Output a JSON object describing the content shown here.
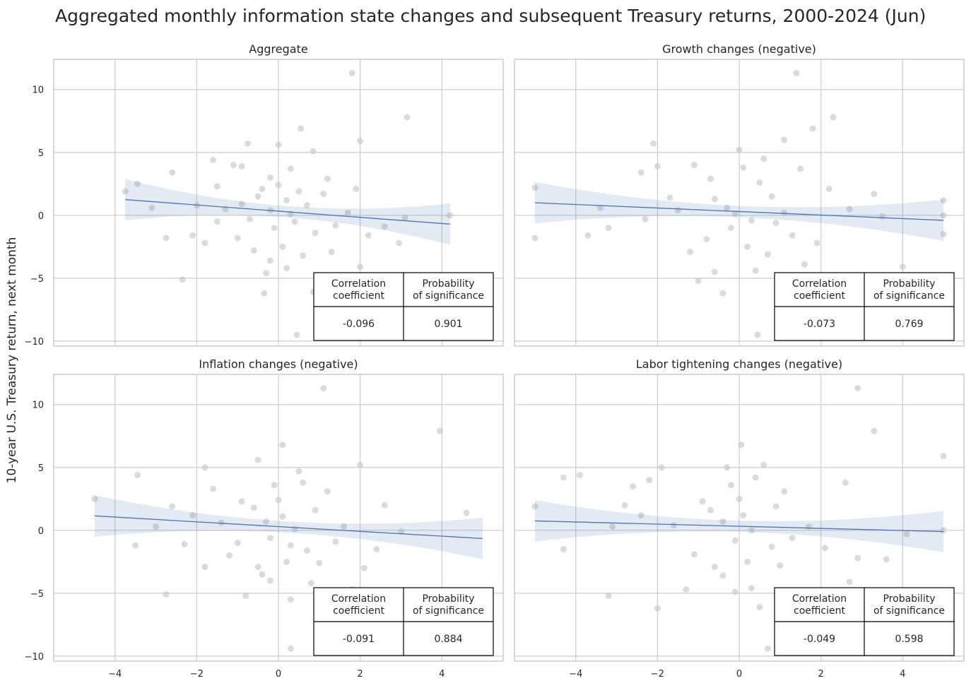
{
  "title": "Aggregated monthly information state changes and subsequent Treasury returns, 2000-2024 (Jun)",
  "ylabel": "10-year U.S. Treasury return, next month",
  "colors": {
    "points": "#c8c8c8",
    "line": "#4c72b0",
    "band": "#4c72b0",
    "grid": "#cccccc"
  },
  "table_headers": [
    "Correlation\ncoefficient",
    "Probability\nof significance"
  ],
  "chart_data": [
    {
      "type": "scatter",
      "title": "Aggregate",
      "xlim": [
        -5.5,
        5.5
      ],
      "ylim": [
        -10.4,
        12.4
      ],
      "xticks": [
        -4,
        -2,
        0,
        2,
        4
      ],
      "yticks": [
        -10,
        -5,
        0,
        5,
        10
      ],
      "grid": true,
      "regression": {
        "x": [
          -3.75,
          4.2
        ],
        "y": [
          1.25,
          -0.7
        ]
      },
      "correlation": "-0.096",
      "probability": "0.901",
      "points": [
        [
          1.8,
          11.3
        ],
        [
          3.15,
          7.8
        ],
        [
          2.0,
          5.9
        ],
        [
          0.55,
          6.9
        ],
        [
          -0.75,
          5.7
        ],
        [
          0,
          5.6
        ],
        [
          -3.75,
          1.9
        ],
        [
          -3.45,
          2.5
        ],
        [
          -2.6,
          3.4
        ],
        [
          -2.35,
          -5.1
        ],
        [
          -2.75,
          -1.8
        ],
        [
          -1.6,
          4.4
        ],
        [
          -1.5,
          2.3
        ],
        [
          -0.35,
          -6.2
        ],
        [
          0.85,
          -6.1
        ],
        [
          0.45,
          -9.5
        ],
        [
          2.0,
          -4.1
        ],
        [
          1.6,
          -5.4
        ],
        [
          4.2,
          0
        ],
        [
          3.1,
          -0.2
        ],
        [
          2.95,
          -2.2
        ],
        [
          2.2,
          -1.6
        ],
        [
          1.9,
          2.1
        ],
        [
          -1.1,
          4.0
        ],
        [
          -0.9,
          3.9
        ],
        [
          -0.2,
          3.0
        ],
        [
          0.3,
          3.7
        ],
        [
          0.85,
          5.1
        ],
        [
          -1.8,
          -2.2
        ],
        [
          -2.1,
          -1.6
        ],
        [
          -1.0,
          -1.8
        ],
        [
          -0.6,
          -2.8
        ],
        [
          0.1,
          -2.5
        ],
        [
          0.6,
          -3.2
        ],
        [
          1.3,
          -2.9
        ],
        [
          -0.3,
          -4.6
        ],
        [
          0.2,
          -4.2
        ],
        [
          -0.5,
          1.5
        ],
        [
          0.2,
          1.2
        ],
        [
          -0.2,
          0.4
        ],
        [
          0.4,
          -0.5
        ],
        [
          -0.7,
          -0.3
        ],
        [
          0.7,
          0.8
        ],
        [
          1.1,
          1.7
        ],
        [
          1.4,
          -0.8
        ],
        [
          -1.3,
          0.5
        ],
        [
          -2.0,
          0.8
        ],
        [
          -3.1,
          0.6
        ],
        [
          2.6,
          -0.9
        ],
        [
          0.0,
          2.4
        ],
        [
          -0.1,
          -1.0
        ],
        [
          0.3,
          0.1
        ],
        [
          -0.4,
          2.1
        ],
        [
          0.9,
          -1.4
        ],
        [
          1.7,
          0.2
        ],
        [
          -1.5,
          -0.5
        ],
        [
          -0.2,
          -3.6
        ],
        [
          0.5,
          1.9
        ],
        [
          -0.9,
          0.9
        ],
        [
          1.2,
          2.9
        ]
      ]
    },
    {
      "type": "scatter",
      "title": "Growth changes (negative)",
      "xlim": [
        -5.5,
        5.5
      ],
      "ylim": [
        -10.4,
        12.4
      ],
      "xticks": [
        -4,
        -2,
        0,
        2,
        4
      ],
      "yticks": [
        -10,
        -5,
        0,
        5,
        10
      ],
      "grid": true,
      "regression": {
        "x": [
          -5,
          5
        ],
        "y": [
          1.0,
          -0.4
        ]
      },
      "correlation": "-0.073",
      "probability": "0.769",
      "points": [
        [
          1.4,
          11.3
        ],
        [
          2.3,
          7.8
        ],
        [
          1.8,
          6.9
        ],
        [
          1.1,
          6.0
        ],
        [
          -2.1,
          5.7
        ],
        [
          0,
          5.2
        ],
        [
          -5,
          2.2
        ],
        [
          -5,
          -1.8
        ],
        [
          -3.2,
          -1.0
        ],
        [
          -3.7,
          -1.6
        ],
        [
          -2.0,
          3.9
        ],
        [
          -2.4,
          3.4
        ],
        [
          5,
          1.2
        ],
        [
          5,
          -1.5
        ],
        [
          5,
          0
        ],
        [
          3.3,
          1.7
        ],
        [
          3.5,
          -0.1
        ],
        [
          4.0,
          -4.1
        ],
        [
          2.2,
          2.1
        ],
        [
          1.9,
          -2.2
        ],
        [
          1.6,
          -3.9
        ],
        [
          0.45,
          -9.5
        ],
        [
          -0.4,
          -6.2
        ],
        [
          -0.6,
          -4.5
        ],
        [
          0.4,
          -4.4
        ],
        [
          -1.0,
          -5.2
        ],
        [
          -1.2,
          -2.9
        ],
        [
          -0.8,
          -1.9
        ],
        [
          0.2,
          -2.5
        ],
        [
          0.7,
          -3.1
        ],
        [
          1.3,
          -1.6
        ],
        [
          -0.3,
          0.6
        ],
        [
          0.3,
          -0.4
        ],
        [
          -0.6,
          1.3
        ],
        [
          0.8,
          1.5
        ],
        [
          -1.5,
          0.4
        ],
        [
          -2.3,
          -0.3
        ],
        [
          1.1,
          0.2
        ],
        [
          -0.2,
          -1.0
        ],
        [
          0.5,
          2.6
        ],
        [
          -0.7,
          2.9
        ],
        [
          -1.1,
          4.0
        ],
        [
          0.1,
          3.8
        ],
        [
          1.5,
          3.7
        ],
        [
          -1.7,
          1.4
        ],
        [
          -3.4,
          0.6
        ],
        [
          2.7,
          0.5
        ],
        [
          0.9,
          -0.6
        ],
        [
          -0.1,
          0.1
        ],
        [
          0.6,
          4.5
        ]
      ]
    },
    {
      "type": "scatter",
      "title": "Inflation changes (negative)",
      "xlim": [
        -5.5,
        5.5
      ],
      "ylim": [
        -10.4,
        12.4
      ],
      "xticks": [
        -4,
        -2,
        0,
        2,
        4
      ],
      "yticks": [
        -10,
        -5,
        0,
        5,
        10
      ],
      "grid": true,
      "regression": {
        "x": [
          -4.5,
          5
        ],
        "y": [
          1.15,
          -0.65
        ]
      },
      "correlation": "-0.091",
      "probability": "0.884",
      "points": [
        [
          1.1,
          11.3
        ],
        [
          3.95,
          7.9
        ],
        [
          0.1,
          6.8
        ],
        [
          2.0,
          5.2
        ],
        [
          -0.5,
          5.6
        ],
        [
          -4.5,
          2.5
        ],
        [
          -3.45,
          4.4
        ],
        [
          -3.5,
          -1.2
        ],
        [
          -3.0,
          0.3
        ],
        [
          -2.75,
          -5.1
        ],
        [
          -2.3,
          -1.1
        ],
        [
          -1.8,
          -2.9
        ],
        [
          -1.8,
          5.0
        ],
        [
          -1.6,
          3.3
        ],
        [
          4.6,
          1.4
        ],
        [
          3.0,
          -0.1
        ],
        [
          2.6,
          2.0
        ],
        [
          2.1,
          -3.0
        ],
        [
          1.8,
          -4.7
        ],
        [
          0.3,
          -9.4
        ],
        [
          0.3,
          -5.5
        ],
        [
          -0.8,
          -5.2
        ],
        [
          -0.2,
          -4.0
        ],
        [
          0.8,
          -4.2
        ],
        [
          -1.0,
          -1.0
        ],
        [
          -0.5,
          -2.9
        ],
        [
          0.2,
          -2.5
        ],
        [
          0.7,
          -1.6
        ],
        [
          1.4,
          -0.9
        ],
        [
          -0.3,
          0.7
        ],
        [
          0.4,
          0.1
        ],
        [
          -0.6,
          1.8
        ],
        [
          0.9,
          1.6
        ],
        [
          -1.4,
          0.6
        ],
        [
          -2.1,
          1.2
        ],
        [
          1.2,
          3.1
        ],
        [
          -0.1,
          3.6
        ],
        [
          0.6,
          3.8
        ],
        [
          -0.9,
          2.3
        ],
        [
          1.6,
          0.3
        ],
        [
          -0.2,
          -0.6
        ],
        [
          0.1,
          1.1
        ],
        [
          -1.2,
          -2.0
        ],
        [
          2.4,
          -1.5
        ],
        [
          0.5,
          4.7
        ],
        [
          -0.4,
          -3.5
        ],
        [
          1.0,
          -2.6
        ],
        [
          -2.6,
          1.9
        ],
        [
          0.0,
          2.4
        ],
        [
          0.3,
          -1.2
        ]
      ]
    },
    {
      "type": "scatter",
      "title": "Labor tightening changes (negative)",
      "xlim": [
        -5.5,
        5.5
      ],
      "ylim": [
        -10.4,
        12.4
      ],
      "xticks": [
        -4,
        -2,
        0,
        2,
        4
      ],
      "yticks": [
        -10,
        -5,
        0,
        5,
        10
      ],
      "grid": true,
      "regression": {
        "x": [
          -5,
          5
        ],
        "y": [
          0.75,
          -0.1
        ]
      },
      "correlation": "-0.049",
      "probability": "0.598",
      "points": [
        [
          2.9,
          11.3
        ],
        [
          3.3,
          7.9
        ],
        [
          0.05,
          6.8
        ],
        [
          5,
          5.9
        ],
        [
          -0.3,
          5.0
        ],
        [
          -5,
          1.9
        ],
        [
          -4.3,
          4.2
        ],
        [
          -3.9,
          4.4
        ],
        [
          -4.3,
          -1.5
        ],
        [
          -3.2,
          -5.2
        ],
        [
          -2.0,
          -6.2
        ],
        [
          -2.2,
          4.0
        ],
        [
          -1.9,
          5.0
        ],
        [
          -2.6,
          3.5
        ],
        [
          5,
          0
        ],
        [
          4.1,
          -0.3
        ],
        [
          3.6,
          -2.3
        ],
        [
          2.6,
          3.8
        ],
        [
          2.7,
          -4.1
        ],
        [
          2.9,
          -2.2
        ],
        [
          0.7,
          -9.4
        ],
        [
          0.5,
          -6.1
        ],
        [
          -0.1,
          -4.9
        ],
        [
          0.3,
          -4.6
        ],
        [
          -0.6,
          -2.9
        ],
        [
          -1.3,
          -4.7
        ],
        [
          -1.1,
          -1.9
        ],
        [
          0.2,
          -2.5
        ],
        [
          0.8,
          -1.3
        ],
        [
          1.3,
          -0.6
        ],
        [
          -0.4,
          0.7
        ],
        [
          0.3,
          0.0
        ],
        [
          -0.7,
          1.6
        ],
        [
          0.9,
          1.9
        ],
        [
          -1.6,
          0.4
        ],
        [
          -2.4,
          1.2
        ],
        [
          1.1,
          3.1
        ],
        [
          -0.2,
          3.6
        ],
        [
          0.4,
          4.2
        ],
        [
          -0.9,
          2.3
        ],
        [
          1.7,
          0.3
        ],
        [
          -0.1,
          -0.8
        ],
        [
          0.1,
          1.2
        ],
        [
          -3.1,
          0.3
        ],
        [
          2.1,
          -1.4
        ],
        [
          0.6,
          5.2
        ],
        [
          -0.4,
          -3.6
        ],
        [
          1.0,
          -2.8
        ],
        [
          -2.8,
          2.0
        ],
        [
          0.0,
          2.5
        ]
      ]
    }
  ]
}
